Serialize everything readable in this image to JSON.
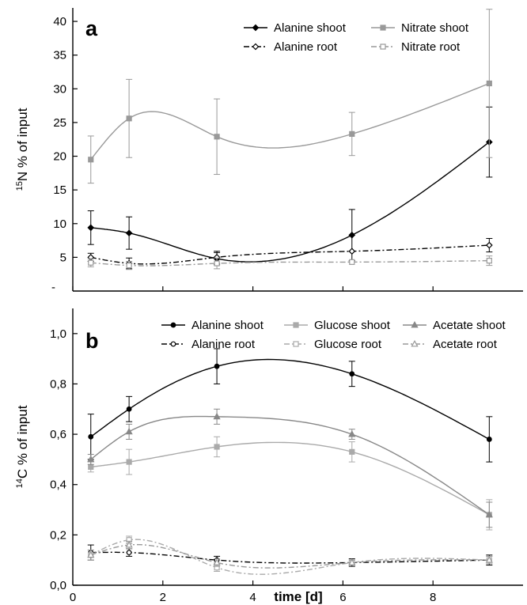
{
  "xlabel": "time [d]",
  "chart_data": [
    {
      "panel": "a",
      "type": "line",
      "ylabel": {
        "sup": "15",
        "main": "N % of input"
      },
      "xlim": [
        0,
        10
      ],
      "ylim": [
        0,
        42
      ],
      "yticks": [
        5,
        10,
        15,
        20,
        25,
        30,
        35,
        40
      ],
      "ytick_labels": [
        "5",
        "10",
        "15",
        "20",
        "25",
        "30",
        "35",
        "40"
      ],
      "extra_ytick_labels": [
        "-"
      ],
      "xticks": [
        0,
        2,
        4,
        6,
        8
      ],
      "xtick_labels": [],
      "legend_position": "top-right",
      "series": [
        {
          "name": "Alanine shoot",
          "style": "solid",
          "color": "#000000",
          "marker": "diamond-filled",
          "x": [
            0.4,
            1.25,
            3.2,
            6.2,
            9.25
          ],
          "y": [
            9.4,
            8.6,
            4.8,
            8.3,
            22.1
          ],
          "err": [
            2.5,
            2.4,
            0.9,
            3.8,
            5.2
          ]
        },
        {
          "name": "Nitrate shoot",
          "style": "solid",
          "color": "#999999",
          "marker": "square-filled",
          "x": [
            0.4,
            1.25,
            3.2,
            6.2,
            9.25
          ],
          "y": [
            19.5,
            25.6,
            22.9,
            23.3,
            30.8
          ],
          "err": [
            3.5,
            5.8,
            5.6,
            3.2,
            11.0
          ]
        },
        {
          "name": "Alanine root",
          "style": "dashdot",
          "color": "#000000",
          "marker": "diamond-open",
          "x": [
            0.4,
            1.25,
            3.2,
            6.2,
            9.25
          ],
          "y": [
            5.0,
            4.1,
            5.0,
            5.9,
            6.8
          ],
          "err": [
            0.6,
            0.8,
            0.9,
            0,
            1.0
          ]
        },
        {
          "name": "Nitrate root",
          "style": "dashdot",
          "color": "#999999",
          "marker": "square-open",
          "x": [
            0.4,
            1.25,
            3.2,
            6.2,
            9.25
          ],
          "y": [
            4.2,
            3.8,
            4.1,
            4.3,
            4.5
          ],
          "err": [
            0.6,
            0.6,
            0.8,
            0,
            0.7
          ]
        }
      ]
    },
    {
      "panel": "b",
      "type": "line",
      "ylabel": {
        "sup": "14",
        "main": "C % of input"
      },
      "xlim": [
        0,
        10
      ],
      "ylim": [
        0,
        1.1
      ],
      "yticks": [
        0,
        0.2,
        0.4,
        0.6,
        0.8,
        1.0
      ],
      "ytick_labels": [
        "0,0",
        "0,2",
        "0,4",
        "0,6",
        "0,8",
        "1,0"
      ],
      "xticks": [
        0,
        2,
        4,
        6,
        8
      ],
      "xtick_labels": [
        "0",
        "2",
        "4",
        "6",
        "8"
      ],
      "legend_position": "top",
      "series": [
        {
          "name": "Alanine shoot",
          "style": "solid",
          "color": "#000000",
          "marker": "circle-filled",
          "x": [
            0.4,
            1.25,
            3.2,
            6.2,
            9.25
          ],
          "y": [
            0.59,
            0.7,
            0.87,
            0.84,
            0.58
          ],
          "err": [
            0.09,
            0.05,
            0.07,
            0.05,
            0.09
          ]
        },
        {
          "name": "Glucose shoot",
          "style": "solid",
          "color": "#aaaaaa",
          "marker": "square-filled",
          "x": [
            0.4,
            1.25,
            3.2,
            6.2,
            9.25
          ],
          "y": [
            0.47,
            0.49,
            0.55,
            0.53,
            0.28
          ],
          "err": [
            0.02,
            0.05,
            0.04,
            0.04,
            0.06
          ]
        },
        {
          "name": "Acetate shoot",
          "style": "solid",
          "color": "#888888",
          "marker": "triangle-filled",
          "x": [
            0.4,
            1.25,
            3.2,
            6.2,
            9.25
          ],
          "y": [
            0.5,
            0.61,
            0.67,
            0.6,
            0.28
          ],
          "err": [
            0.02,
            0.03,
            0.03,
            0.02,
            0.05
          ]
        },
        {
          "name": "Alanine root",
          "style": "dashdot",
          "color": "#000000",
          "marker": "circle-open",
          "x": [
            0.4,
            1.25,
            3.2,
            6.2,
            9.25
          ],
          "y": [
            0.13,
            0.13,
            0.1,
            0.09,
            0.1
          ],
          "err": [
            0.03,
            0.015,
            0.015,
            0.015,
            0.02
          ]
        },
        {
          "name": "Glucose root",
          "style": "dashdot",
          "color": "#aaaaaa",
          "marker": "square-open",
          "x": [
            0.4,
            1.25,
            3.2,
            6.2,
            9.25
          ],
          "y": [
            0.12,
            0.18,
            0.07,
            0.09,
            0.1
          ],
          "err": [
            0.02,
            0.015,
            0.015,
            0.01,
            0.015
          ]
        },
        {
          "name": "Acetate root",
          "style": "dashdot",
          "color": "#999999",
          "marker": "triangle-open",
          "x": [
            0.4,
            1.25,
            3.2,
            6.2,
            9.25
          ],
          "y": [
            0.12,
            0.16,
            0.09,
            0.09,
            0.1
          ],
          "err": [
            0.02,
            0.015,
            0.015,
            0.01,
            0.015
          ]
        }
      ]
    }
  ]
}
